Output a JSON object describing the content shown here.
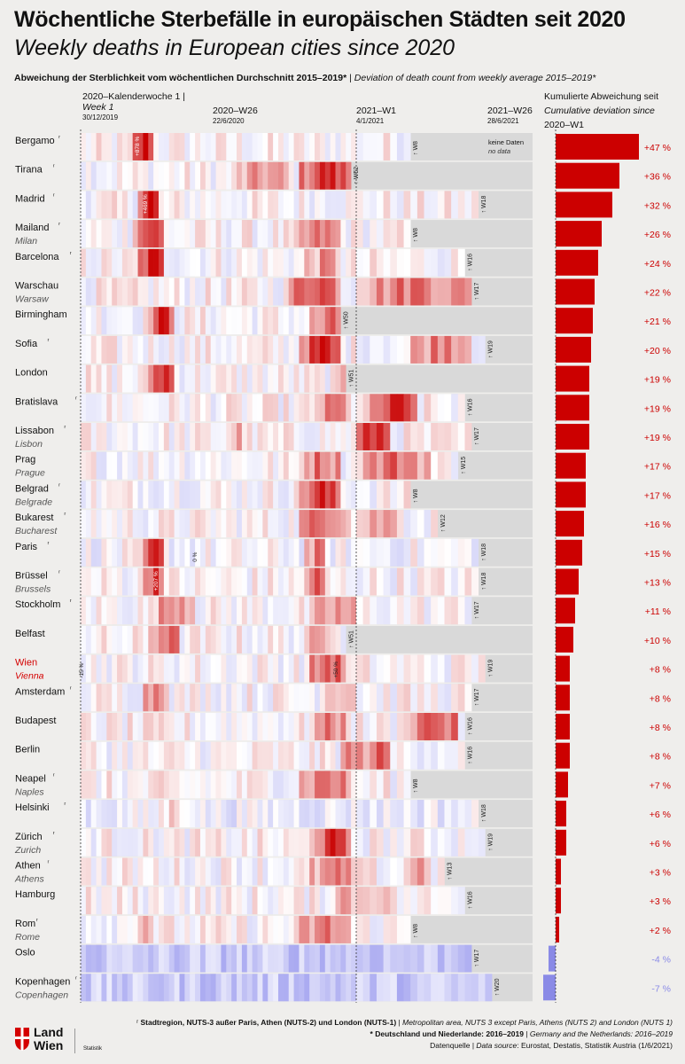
{
  "title": "Wöchentliche Sterbefälle in europäischen Städten seit 2020",
  "subtitle": "Weekly deaths in European cities since 2020",
  "deviation_heading_de": "Abweichung der Sterblichkeit vom wöchentlichen Durchschnitt  2015–2019*",
  "deviation_heading_sep": " | ",
  "deviation_heading_en": "Deviation of death count from weekly average 2015–2019*",
  "col_header_first": "2020–Kalenderwoche 1 |",
  "col_header_first_en": "Week 1",
  "col_header_first_date": "30/12/2019",
  "col_header_mid": "2020–W26",
  "col_header_mid_date": "22/6/2020",
  "col_header_2021": "2021–W1",
  "col_header_2021_date": "4/1/2021",
  "col_header_end": "2021–W26",
  "col_header_end_date": "28/6/2021",
  "cum_heading_de": "Kumulierte Abweichung seit",
  "cum_heading_en": "Cumulative deviation since",
  "cum_heading_since": "2020–W1",
  "no_data_de": "keine Daten",
  "no_data_en": "no data",
  "footnote_region_de": "Stadtregion, NUTS-3 außer Paris, Athen (NUTS-2) und London (NUTS-1)",
  "footnote_region_en": "Metropolitan area, NUTS 3 except Paris, Athens (NUTS 2) and London (NUTS 1)",
  "footnote_star_de": "* Deutschland und Niederlande: 2016–2019",
  "footnote_star_en": "Germany and the Netherlands: 2016–2019",
  "source_de": "Datenquelle",
  "source_en": "Data source",
  "source_text": ": Eurostat, Destatis, Statistik Austria (1/6/2021)",
  "logo_line1": "Land",
  "logo_line2": "Wien",
  "logo_sub": "Statistik",
  "colors": {
    "positive": "#cc0000",
    "negative": "#8a8ae6",
    "highlight": "#d40000",
    "nodata": "#d9d9d9",
    "background": "#efeeec"
  },
  "chart_data": {
    "type": "heatmap",
    "x_range": [
      "2020-W1",
      "2021-W26"
    ],
    "color_scale": "blue (below average) to white to red (above average)",
    "annotations": [
      {
        "city": "Bergamo",
        "text": "+878 %"
      },
      {
        "city": "Madrid",
        "text": "+469 %"
      },
      {
        "city": "Brüssel",
        "text": "+207 %"
      },
      {
        "city": "Paris",
        "text": "0 %"
      },
      {
        "city": "Wien",
        "text": "-15 %"
      },
      {
        "city": "Wien",
        "text": "+50 %"
      },
      {
        "city": "Birmingham",
        "text": "-1 %"
      },
      {
        "city": "Bergamo",
        "text": "-1 %"
      }
    ],
    "cities": [
      {
        "name": "Bergamo",
        "name_en": "",
        "star": true,
        "last_week": "W8",
        "cumulative": 47,
        "label": "+47 %"
      },
      {
        "name": "Tirana",
        "name_en": "",
        "star": true,
        "last_week": "W52",
        "cumulative": 36,
        "label": "+36 %"
      },
      {
        "name": "Madrid",
        "name_en": "",
        "star": true,
        "last_week": "W18",
        "cumulative": 32,
        "label": "+32 %"
      },
      {
        "name": "Mailand",
        "name_en": "Milan",
        "star": true,
        "last_week": "W8",
        "cumulative": 26,
        "label": "+26 %"
      },
      {
        "name": "Barcelona",
        "name_en": "",
        "star": true,
        "last_week": "W16",
        "cumulative": 24,
        "label": "+24 %"
      },
      {
        "name": "Warschau",
        "name_en": "Warsaw",
        "star": false,
        "last_week": "W17",
        "cumulative": 22,
        "label": "+22 %"
      },
      {
        "name": "Birmingham",
        "name_en": "",
        "star": false,
        "last_week": "W50",
        "cumulative": 21,
        "label": "+21 %"
      },
      {
        "name": "Sofia",
        "name_en": "",
        "star": true,
        "last_week": "W19",
        "cumulative": 20,
        "label": "+20 %"
      },
      {
        "name": "London",
        "name_en": "",
        "star": false,
        "last_week": "W51",
        "cumulative": 19,
        "label": "+19 %"
      },
      {
        "name": "Bratislava",
        "name_en": "",
        "star": true,
        "last_week": "W16",
        "cumulative": 19,
        "label": "+19 %"
      },
      {
        "name": "Lissabon",
        "name_en": "Lisbon",
        "star": true,
        "last_week": "W17",
        "cumulative": 19,
        "label": "+19 %"
      },
      {
        "name": "Prag",
        "name_en": "Prague",
        "star": false,
        "last_week": "W15",
        "cumulative": 17,
        "label": "+17 %"
      },
      {
        "name": "Belgrad",
        "name_en": "Belgrade",
        "star": true,
        "last_week": "W8",
        "cumulative": 17,
        "label": "+17 %"
      },
      {
        "name": "Bukarest",
        "name_en": "Bucharest",
        "star": true,
        "last_week": "W12",
        "cumulative": 16,
        "label": "+16 %"
      },
      {
        "name": "Paris",
        "name_en": "",
        "star": true,
        "last_week": "W18",
        "cumulative": 15,
        "label": "+15 %"
      },
      {
        "name": "Brüssel",
        "name_en": "Brussels",
        "star": true,
        "last_week": "W18",
        "cumulative": 13,
        "label": "+13 %"
      },
      {
        "name": "Stockholm",
        "name_en": "",
        "star": true,
        "last_week": "W17",
        "cumulative": 11,
        "label": "+11 %"
      },
      {
        "name": "Belfast",
        "name_en": "",
        "star": false,
        "last_week": "W51",
        "cumulative": 10,
        "label": "+10 %"
      },
      {
        "name": "Wien",
        "name_en": "Vienna",
        "star": false,
        "highlight": true,
        "last_week": "W19",
        "cumulative": 8,
        "label": "+8 %"
      },
      {
        "name": "Amsterdam",
        "name_en": "",
        "star": true,
        "last_week": "W17",
        "cumulative": 8,
        "label": "+8 %"
      },
      {
        "name": "Budapest",
        "name_en": "",
        "star": false,
        "last_week": "W16",
        "cumulative": 8,
        "label": "+8 %"
      },
      {
        "name": "Berlin",
        "name_en": "",
        "star": false,
        "last_week": "W16",
        "cumulative": 8,
        "label": "+8 %"
      },
      {
        "name": "Neapel",
        "name_en": "Naples",
        "star": true,
        "last_week": "W8",
        "cumulative": 7,
        "label": "+7 %"
      },
      {
        "name": "Helsinki",
        "name_en": "",
        "star": true,
        "last_week": "W18",
        "cumulative": 6,
        "label": "+6 %"
      },
      {
        "name": "Zürich",
        "name_en": "Zurich",
        "star": true,
        "last_week": "W19",
        "cumulative": 6,
        "label": "+6 %"
      },
      {
        "name": "Athen",
        "name_en": "Athens",
        "star": true,
        "last_week": "W13",
        "cumulative": 3,
        "label": "+3 %"
      },
      {
        "name": "Hamburg",
        "name_en": "",
        "star": false,
        "last_week": "W16",
        "cumulative": 3,
        "label": "+3 %"
      },
      {
        "name": "Rom",
        "name_en": "Rome",
        "star": true,
        "last_week": "W8",
        "cumulative": 2,
        "label": "+2 %"
      },
      {
        "name": "Oslo",
        "name_en": "",
        "star": false,
        "last_week": "W17",
        "cumulative": -4,
        "label": "-4 %"
      },
      {
        "name": "Kopenhagen",
        "name_en": "Copenhagen",
        "star": true,
        "last_week": "W20",
        "cumulative": -7,
        "label": "-7 %"
      }
    ]
  }
}
